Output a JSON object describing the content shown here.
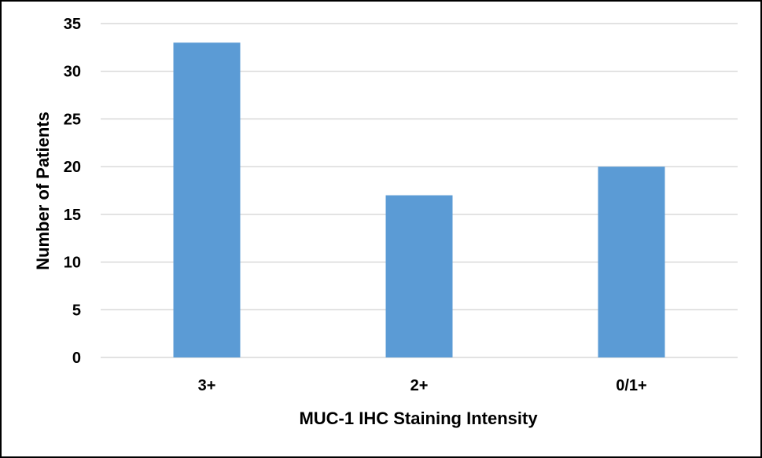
{
  "chart_data": {
    "type": "bar",
    "title": "",
    "categories": [
      "3+",
      "2+",
      "0/1+"
    ],
    "values": [
      33,
      17,
      20
    ],
    "xlabel": "MUC-1 IHC Staining Intensity",
    "ylabel": "Number of Patients",
    "ylim": [
      0,
      35
    ],
    "yticks": [
      0,
      5,
      10,
      15,
      20,
      25,
      30,
      35
    ],
    "grid": true,
    "legend": "none",
    "bar_color": "#5b9bd5",
    "grid_color": "#d9d9d9"
  }
}
